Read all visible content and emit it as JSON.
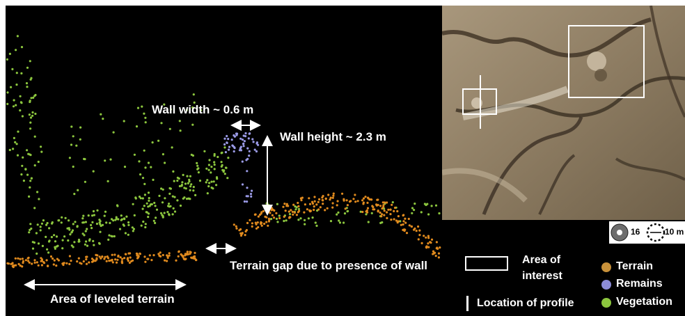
{
  "annotations": {
    "wall_width": "Wall width ~ 0.6 m",
    "wall_height": "Wall height ~ 2.3 m",
    "terrain_gap": "Terrain gap due to presence of wall",
    "leveled_terrain": "Area of leveled terrain"
  },
  "legend": {
    "area_of_interest_line1": "Area of",
    "area_of_interest_line2": "interest",
    "location_of_profile": "Location of profile",
    "items": [
      {
        "label": "Terrain",
        "color": "#c8913a"
      },
      {
        "label": "Remains",
        "color": "#8c8cd8"
      },
      {
        "label": "Vegetation",
        "color": "#8cc63e"
      }
    ]
  },
  "scale": {
    "value_16": "16",
    "value_10m": "10 m"
  },
  "colors": {
    "terrain_points": "#e08a1e",
    "remains_points": "#9a9ae6",
    "vegetation_points": "#8cc63e",
    "background": "#000000"
  }
}
